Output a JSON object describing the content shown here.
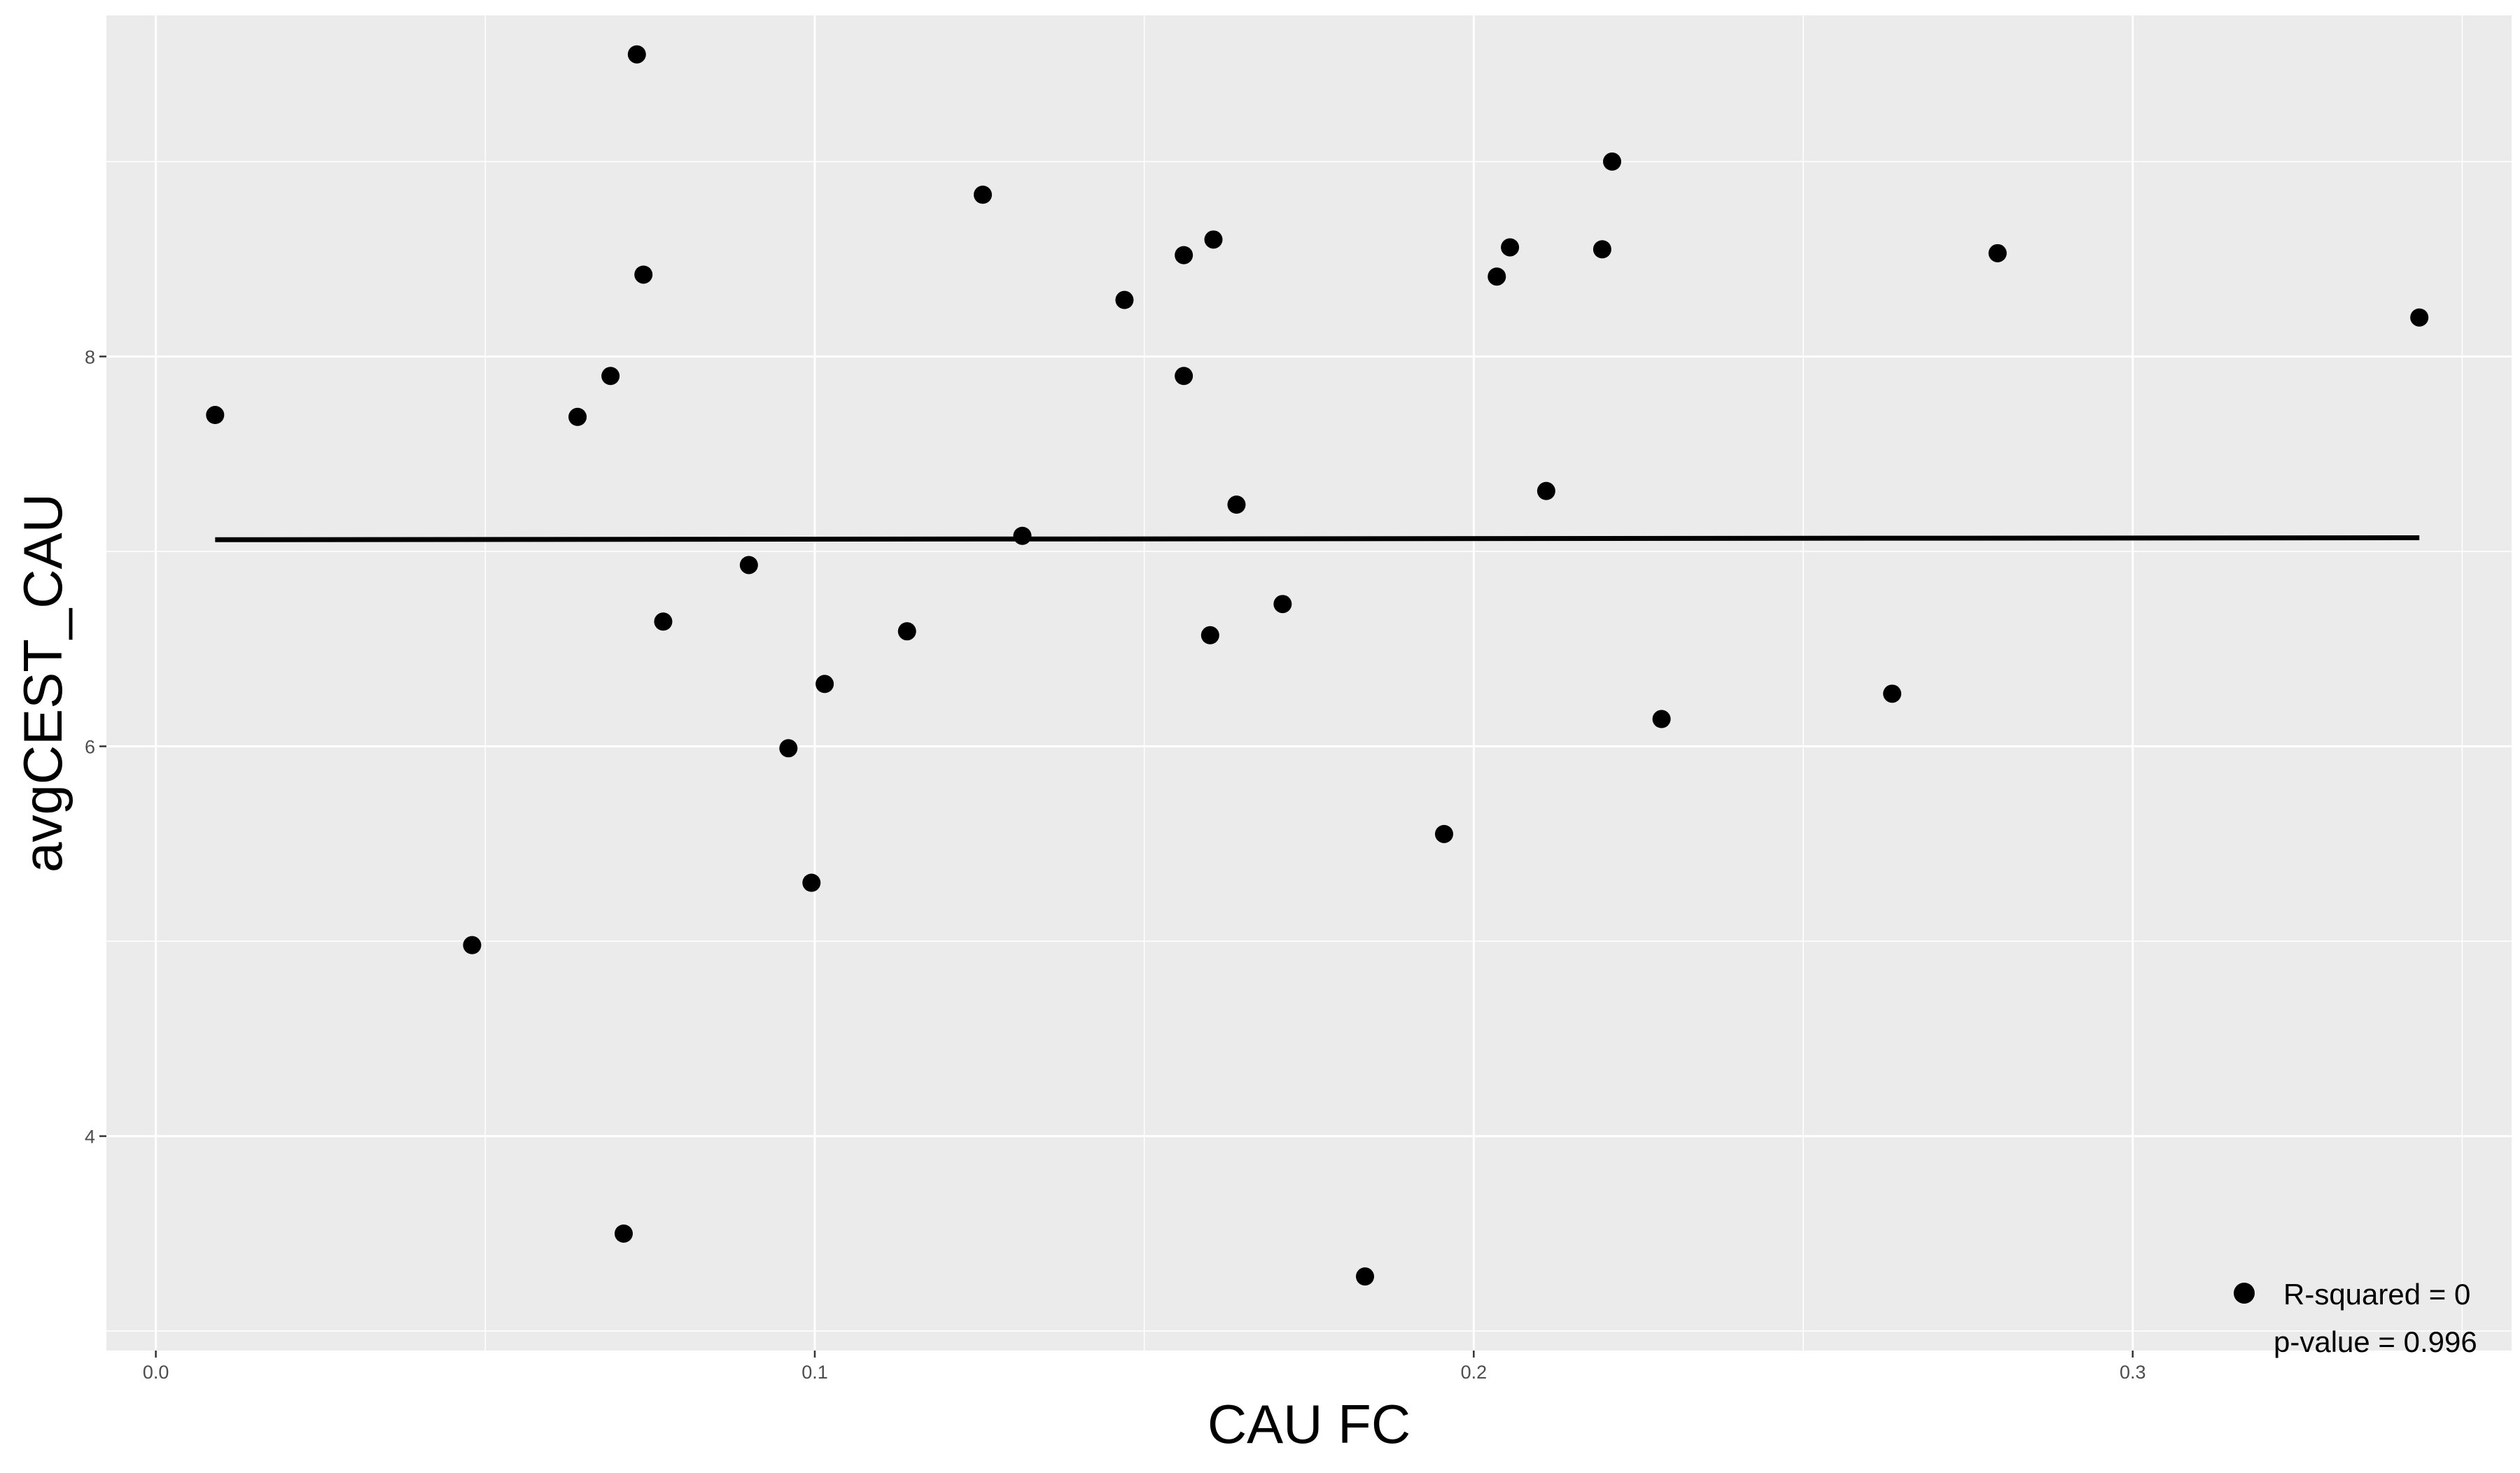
{
  "chart_data": {
    "type": "scatter",
    "xlabel": "CAU FC",
    "ylabel": "avgCEST_CAU",
    "xlim": [
      -0.0075,
      0.3575
    ],
    "ylim": [
      2.9,
      9.75
    ],
    "x_ticks": [
      0.0,
      0.1,
      0.2,
      0.3
    ],
    "x_tick_labels": [
      "0.0",
      "0.1",
      "0.2",
      "0.3"
    ],
    "y_ticks": [
      4,
      6,
      8
    ],
    "y_tick_labels": [
      "4",
      "6",
      "8"
    ],
    "grid": true,
    "background": "#ebebeb",
    "gridline_color": "#ffffff",
    "point_color": "#000000",
    "points": [
      {
        "x": 0.009,
        "y": 7.7
      },
      {
        "x": 0.048,
        "y": 4.98
      },
      {
        "x": 0.064,
        "y": 7.69
      },
      {
        "x": 0.069,
        "y": 7.9
      },
      {
        "x": 0.071,
        "y": 3.5
      },
      {
        "x": 0.073,
        "y": 9.55
      },
      {
        "x": 0.074,
        "y": 8.42
      },
      {
        "x": 0.077,
        "y": 6.64
      },
      {
        "x": 0.09,
        "y": 6.93
      },
      {
        "x": 0.096,
        "y": 5.99
      },
      {
        "x": 0.0995,
        "y": 5.3
      },
      {
        "x": 0.1015,
        "y": 6.32
      },
      {
        "x": 0.114,
        "y": 6.59
      },
      {
        "x": 0.1255,
        "y": 8.83
      },
      {
        "x": 0.1315,
        "y": 7.08
      },
      {
        "x": 0.147,
        "y": 8.29
      },
      {
        "x": 0.156,
        "y": 7.9
      },
      {
        "x": 0.156,
        "y": 8.52
      },
      {
        "x": 0.16,
        "y": 6.57
      },
      {
        "x": 0.1605,
        "y": 8.6
      },
      {
        "x": 0.164,
        "y": 7.24
      },
      {
        "x": 0.171,
        "y": 6.73
      },
      {
        "x": 0.1835,
        "y": 3.28
      },
      {
        "x": 0.1955,
        "y": 5.55
      },
      {
        "x": 0.2035,
        "y": 8.41
      },
      {
        "x": 0.2055,
        "y": 8.56
      },
      {
        "x": 0.211,
        "y": 7.31
      },
      {
        "x": 0.2195,
        "y": 8.55
      },
      {
        "x": 0.221,
        "y": 9.0
      },
      {
        "x": 0.2285,
        "y": 6.14
      },
      {
        "x": 0.2635,
        "y": 6.27
      },
      {
        "x": 0.2795,
        "y": 8.53
      },
      {
        "x": 0.3435,
        "y": 8.2
      }
    ],
    "fit_line": {
      "x": [
        0.009,
        0.3435
      ],
      "y": [
        7.06,
        7.07
      ]
    },
    "legend": {
      "placement": "bottom-right",
      "entries": [
        "R-squared = 0",
        "p-value = 0.996"
      ]
    }
  }
}
